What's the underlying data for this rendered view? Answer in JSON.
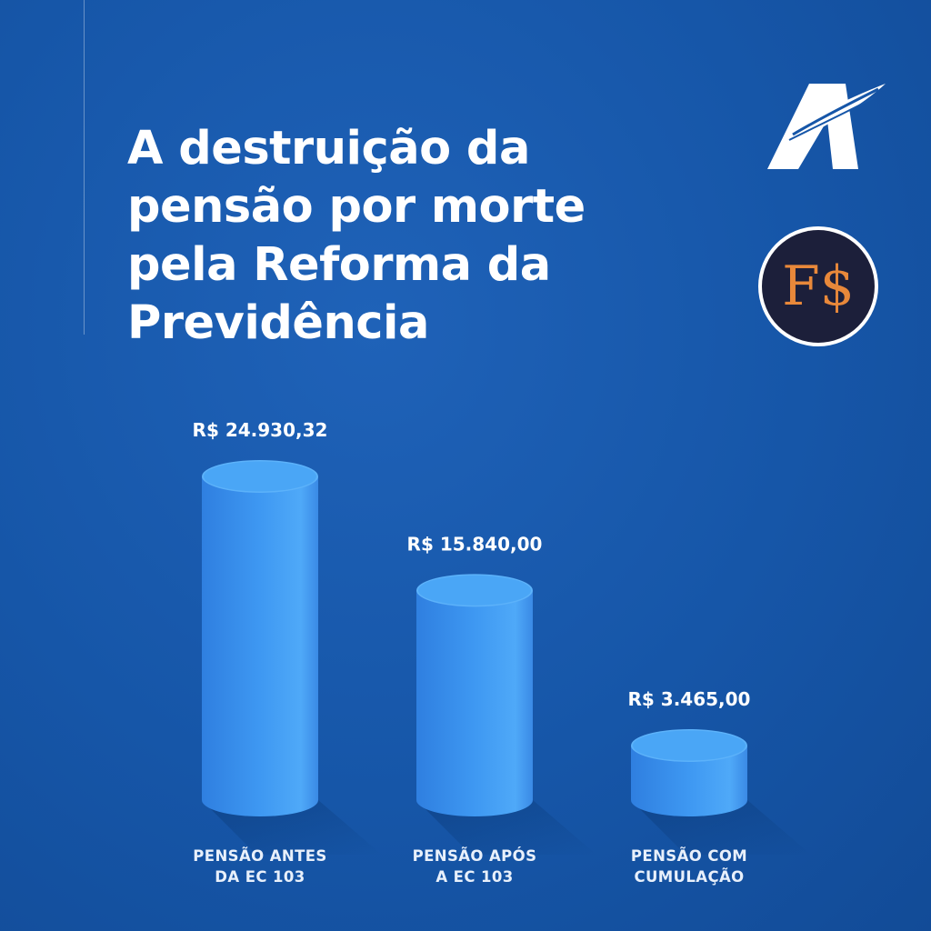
{
  "header": {
    "title_lines": [
      "A destruição da",
      "pensão por morte",
      "pela Reforma da",
      "Previdência"
    ]
  },
  "brand": {
    "badge_text": "F$",
    "badge_text_color": "#e8883a",
    "badge_bg": "#1c1f3a"
  },
  "chart_data": {
    "type": "bar",
    "categories": [
      [
        "PENSÃO ANTES",
        "DA EC 103"
      ],
      [
        "PENSÃO APÓS",
        "A EC 103"
      ],
      [
        "PENSÃO COM",
        "CUMULAÇÃO"
      ]
    ],
    "values": [
      24930.32,
      15840.0,
      3465.0
    ],
    "value_labels": [
      "R$ 24.930,32",
      "R$ 15.840,00",
      "R$ 3.465,00"
    ],
    "grid": false,
    "bar_color": "#3d9af0"
  }
}
